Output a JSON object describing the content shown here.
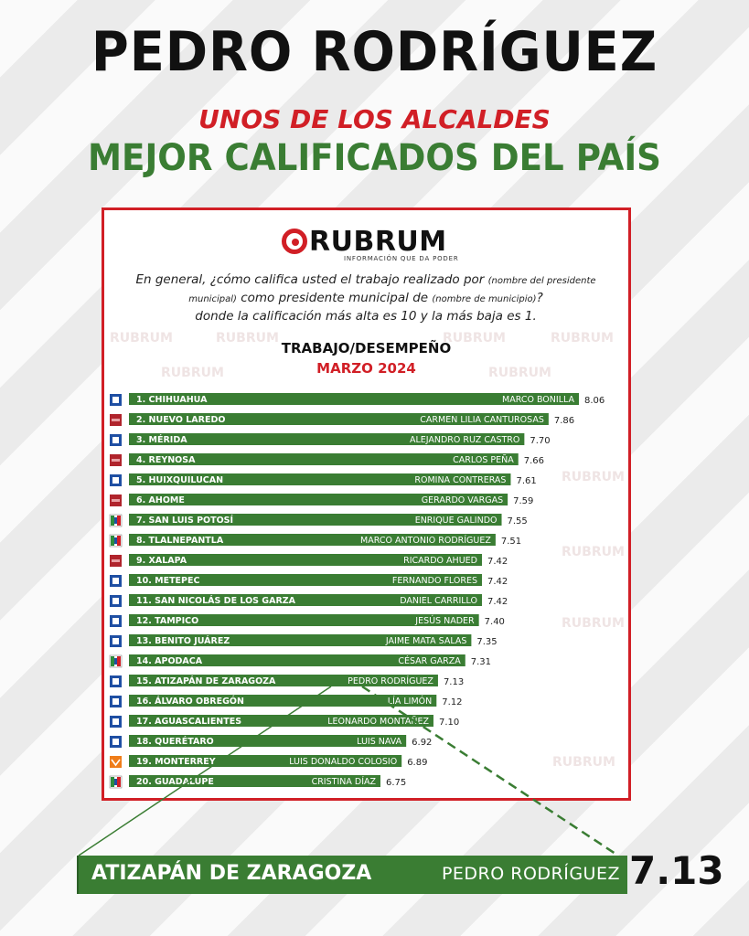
{
  "headline": "PEDRO RODRÍGUEZ",
  "subheadline_1": "UNOS DE LOS ALCALDES",
  "subheadline_2": "MEJOR CALIFICADOS DEL PAÍS",
  "logo": {
    "word": "RUBRUM",
    "tagline": "INFORMACIÓN QUE DA PODER"
  },
  "watermark": "RUBRUM",
  "question": {
    "part1": "En general, ¿cómo califica usted el trabajo realizado por",
    "note1": "(nombre del presidente municipal)",
    "part2": "como presidente municipal de",
    "note2": "(nombre de municipio)",
    "part3": "?",
    "part4": "donde la calificación más alta es 10 y la más baja es 1."
  },
  "colors": {
    "bar": "#3a7d33",
    "accent_red": "#d11f26",
    "pan_blue": "#1f4fa3",
    "morena": "#b0242c",
    "mc_orange": "#ef7d1a"
  },
  "chart_data": {
    "type": "bar",
    "orientation": "horizontal",
    "title": "TRABAJO/DESEMPEÑO",
    "subtitle": "MARZO 2024",
    "categories": [
      "1. CHIHUAHUA",
      "2. NUEVO LAREDO",
      "3. MÉRIDA",
      "4. REYNOSA",
      "5. HUIXQUILUCAN",
      "6. AHOME",
      "7. SAN LUIS POTOSÍ",
      "8. TLALNEPANTLA",
      "9. XALAPA",
      "10. METEPEC",
      "11. SAN NICOLÁS DE LOS GARZA",
      "12. TAMPICO",
      "13. BENITO JUÁREZ",
      "14. APODACA",
      "15. ATIZAPÁN DE ZARAGOZA",
      "16. ÁLVARO OBREGÓN",
      "17. AGUASCALIENTES",
      "18. QUERÉTARO",
      "19. MONTERREY",
      "20. GUADALUPE"
    ],
    "names": [
      "MARCO BONILLA",
      "CARMEN LILIA CANTUROSAS",
      "ALEJANDRO RUZ CASTRO",
      "CARLOS PEÑA",
      "ROMINA CONTRERAS",
      "GERARDO VARGAS",
      "ENRIQUE GALINDO",
      "MARCO ANTONIO RODRÍGUEZ",
      "RICARDO AHUED",
      "FERNANDO FLORES",
      "DANIEL CARRILLO",
      "JESÚS NADER",
      "JAIME MATA SALAS",
      "CÉSAR GARZA",
      "PEDRO RODRÍGUEZ",
      "LÍA LIMÓN",
      "LEONARDO MONTAÑEZ",
      "LUIS NAVA",
      "LUIS DONALDO COLOSIO",
      "CRISTINA DÍAZ"
    ],
    "values": [
      8.06,
      7.86,
      7.7,
      7.66,
      7.61,
      7.59,
      7.55,
      7.51,
      7.42,
      7.42,
      7.42,
      7.4,
      7.35,
      7.31,
      7.13,
      7.12,
      7.1,
      6.92,
      6.89,
      6.75
    ],
    "value_labels": [
      "8.06",
      "7.86",
      "7.70",
      "7.66",
      "7.61",
      "7.59",
      "7.55",
      "7.51",
      "7.42",
      "7.42",
      "7.42",
      "7.40",
      "7.35",
      "7.31",
      "7.13",
      "7.12",
      "7.10",
      "6.92",
      "6.89",
      "6.75"
    ],
    "party_icons": [
      "pan",
      "morena",
      "pan",
      "morena",
      "pan",
      "morena",
      "pri-pan-prd",
      "pri-pan-prd",
      "morena",
      "pan",
      "pan",
      "pan",
      "pan",
      "pri-pan-prd",
      "pan",
      "pan",
      "pan",
      "pan",
      "mc",
      "pri-pan-prd"
    ],
    "highlight_index": 14
  },
  "zoom": {
    "city": "ATIZAPÁN DE ZARAGOZA",
    "name": "PEDRO RODRÍGUEZ",
    "value": "7.13"
  }
}
